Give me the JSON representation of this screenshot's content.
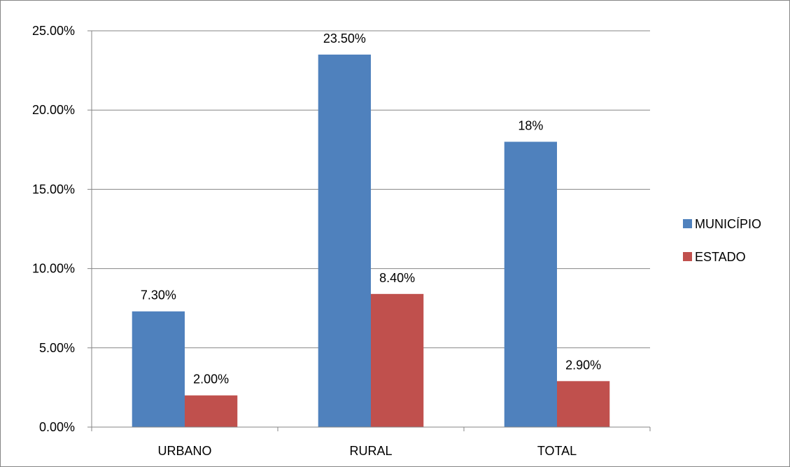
{
  "chart_data": {
    "type": "bar",
    "categories": [
      "URBANO",
      "RURAL",
      "TOTAL"
    ],
    "series": [
      {
        "name": "MUNICÍPIO",
        "color": "#4F81BD",
        "values": [
          7.3,
          23.5,
          18
        ],
        "labels": [
          "7.30%",
          "23.50%",
          "18%"
        ]
      },
      {
        "name": "ESTADO",
        "color": "#C0504D",
        "values": [
          2.0,
          8.4,
          2.9
        ],
        "labels": [
          "2.00%",
          "8.40%",
          "2.90%"
        ]
      }
    ],
    "ylim": [
      0,
      25
    ],
    "yticks": [
      0,
      5,
      10,
      15,
      20,
      25
    ],
    "ytick_labels": [
      "0.00%",
      "5.00%",
      "10.00%",
      "15.00%",
      "20.00%",
      "25.00%"
    ],
    "grid": true,
    "legend_position": "right",
    "title": "",
    "xlabel": "",
    "ylabel": ""
  }
}
